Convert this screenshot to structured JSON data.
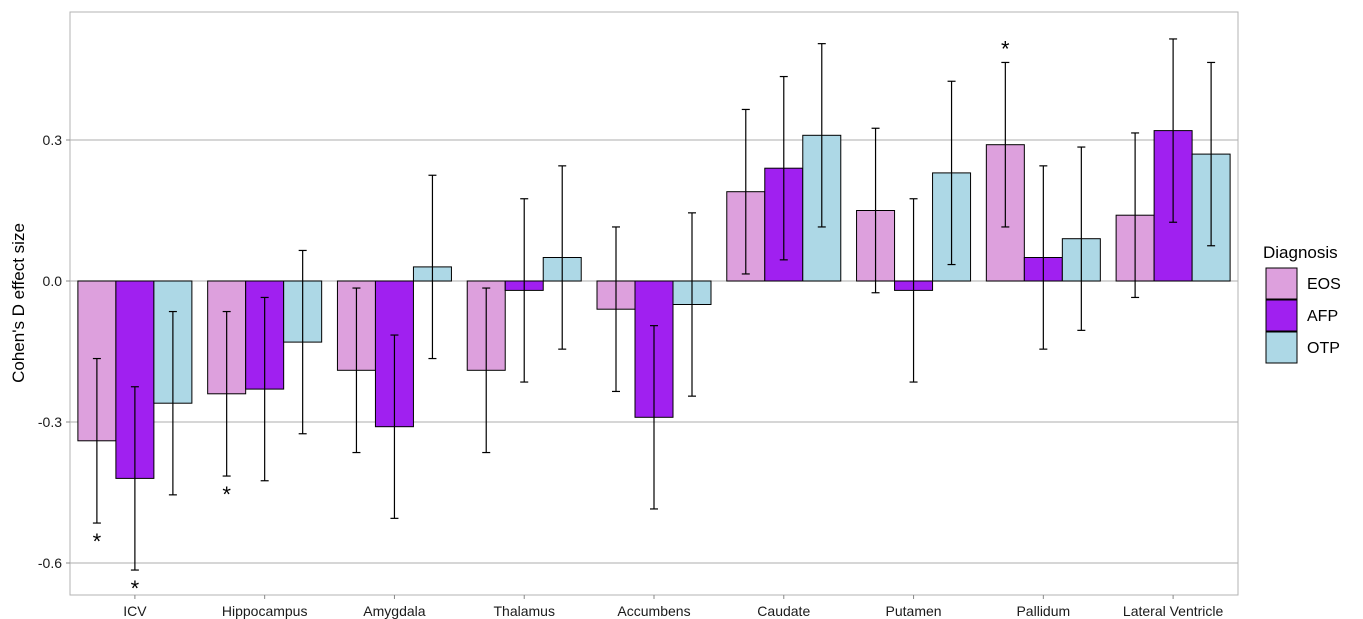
{
  "chart_data": {
    "type": "bar",
    "title": "",
    "xlabel": "",
    "ylabel": "Cohen's D effect size",
    "ylim": [
      -0.67,
      0.57
    ],
    "yticks": [
      -0.6,
      -0.3,
      0.0,
      0.3
    ],
    "ytick_labels": [
      "-0.6",
      "-0.3",
      "0.0",
      "0.3"
    ],
    "grid": true,
    "legend": {
      "title": "Diagnosis",
      "position": "right"
    },
    "categories": [
      "ICV",
      "Hippocampus",
      "Amygdala",
      "Thalamus",
      "Accumbens",
      "Caudate",
      "Putamen",
      "Pallidum",
      "Lateral Ventricle"
    ],
    "series": [
      {
        "name": "EOS",
        "color": "#dda0dd",
        "values": [
          -0.34,
          -0.24,
          -0.19,
          -0.19,
          -0.06,
          0.19,
          0.15,
          0.29,
          0.14
        ],
        "ci_low": [
          -0.515,
          -0.415,
          -0.365,
          -0.365,
          -0.235,
          0.015,
          -0.025,
          0.115,
          -0.035
        ],
        "ci_high": [
          -0.165,
          -0.065,
          -0.015,
          -0.015,
          0.115,
          0.365,
          0.325,
          0.465,
          0.315
        ],
        "significant": [
          true,
          true,
          false,
          false,
          false,
          false,
          false,
          true,
          false
        ]
      },
      {
        "name": "AFP",
        "color": "#a020f0",
        "values": [
          -0.42,
          -0.23,
          -0.31,
          -0.02,
          -0.29,
          0.24,
          -0.02,
          0.05,
          0.32
        ],
        "ci_low": [
          -0.615,
          -0.425,
          -0.505,
          -0.215,
          -0.485,
          0.045,
          -0.215,
          -0.145,
          0.125
        ],
        "ci_high": [
          -0.225,
          -0.035,
          -0.115,
          0.175,
          -0.095,
          0.435,
          0.175,
          0.245,
          0.515
        ],
        "significant": [
          true,
          false,
          false,
          false,
          false,
          false,
          false,
          false,
          false
        ]
      },
      {
        "name": "OTP",
        "color": "#add8e6",
        "values": [
          -0.26,
          -0.13,
          0.03,
          0.05,
          -0.05,
          0.31,
          0.23,
          0.09,
          0.27
        ],
        "ci_low": [
          -0.455,
          -0.325,
          -0.165,
          -0.145,
          -0.245,
          0.115,
          0.035,
          -0.105,
          0.075
        ],
        "ci_high": [
          -0.065,
          0.065,
          0.225,
          0.245,
          0.145,
          0.505,
          0.425,
          0.285,
          0.465
        ],
        "significant": [
          false,
          false,
          false,
          false,
          false,
          false,
          false,
          false,
          false
        ]
      }
    ],
    "annotation_symbol": "*"
  }
}
